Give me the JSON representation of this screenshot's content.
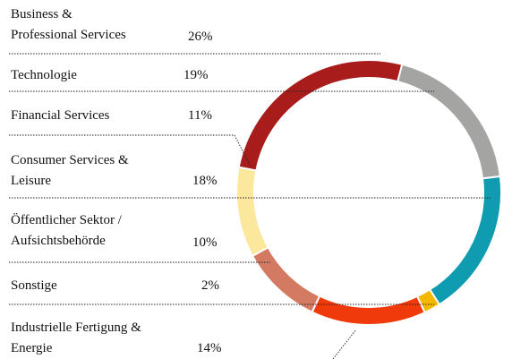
{
  "chart_data": {
    "type": "donut",
    "categories": [
      "Business &\nProfessional Services",
      "Technologie",
      "Financial Services",
      "Consumer Services &\nLeisure",
      "Öffentlicher Sektor /\nAufsichtsbehörde",
      "Sonstige",
      "Industrielle Fertigung &\nEnergie"
    ],
    "values": [
      26,
      19,
      11,
      18,
      10,
      2,
      14
    ],
    "value_labels": [
      "26%",
      "19%",
      "11%",
      "18%",
      "10%",
      "2%",
      "14%"
    ],
    "colors": [
      "#a81c1c",
      "#a4a4a2",
      "#fbe89c",
      "#0f9bb0",
      "#d47a62",
      "#f4b800",
      "#f03a0c"
    ]
  }
}
